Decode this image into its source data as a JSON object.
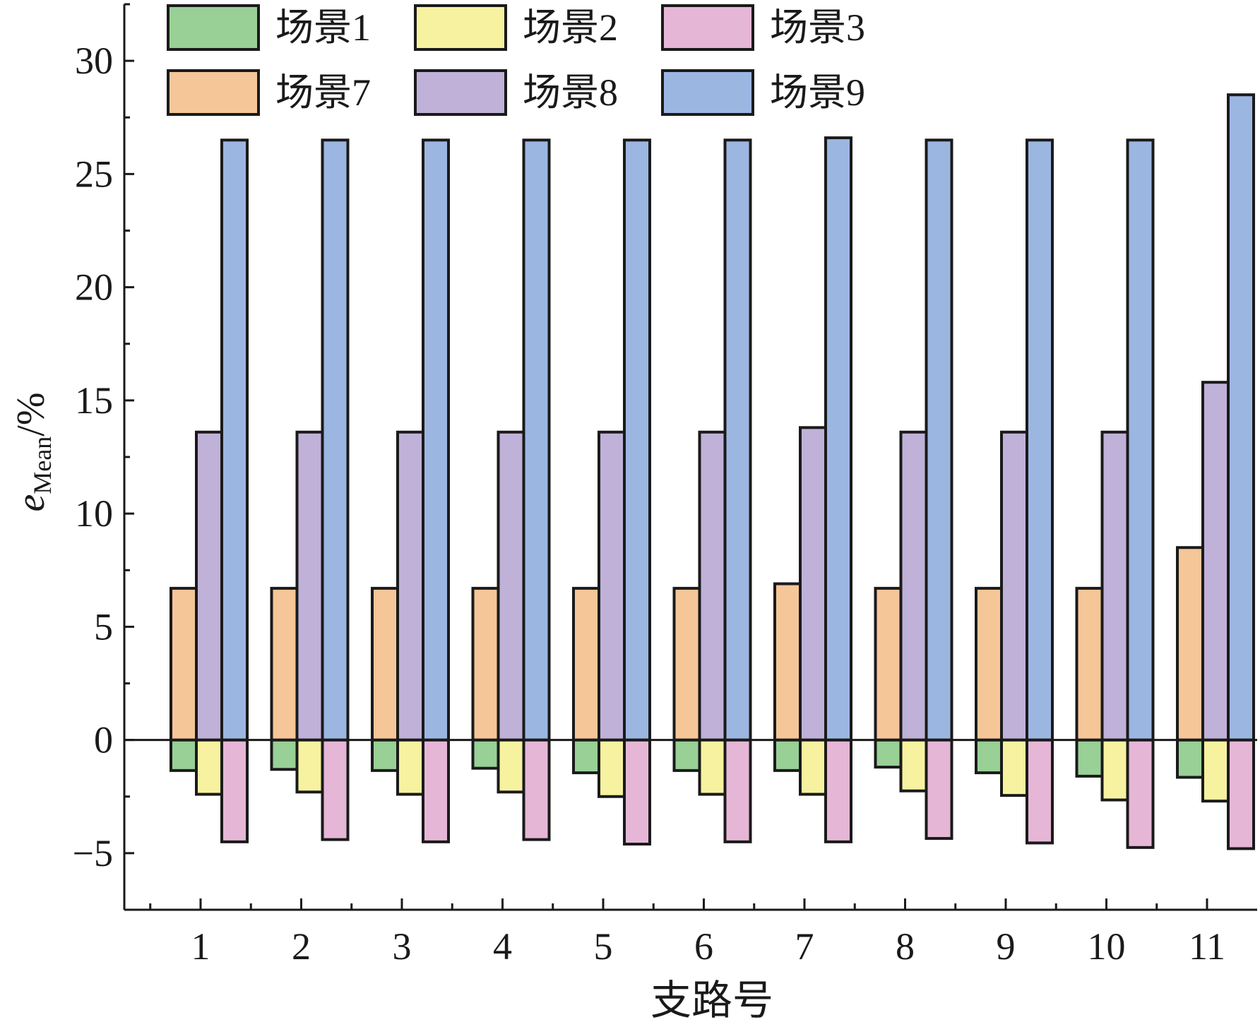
{
  "chart_data": {
    "type": "bar",
    "xlabel": "支路号",
    "ylabel": {
      "main": "e",
      "subscript": "Mean",
      "unit": "/%"
    },
    "ylim": [
      -7.5,
      32.5
    ],
    "yticks": [
      "−5",
      "0",
      "5",
      "10",
      "15",
      "20",
      "25",
      "30"
    ],
    "ytick_values": [
      -5,
      0,
      5,
      10,
      15,
      20,
      25,
      30
    ],
    "categories": [
      "1",
      "2",
      "3",
      "4",
      "5",
      "6",
      "7",
      "8",
      "9",
      "10",
      "11"
    ],
    "grid": false,
    "legend": {
      "position": "top",
      "columns": 3
    },
    "layout": "for each branch, series 1/2/3 are drawn below zero in positions 1-3 and series 7/8/9 above zero in positions 1-3 (overlapping slots)",
    "series": [
      {
        "name": "场景1",
        "color": "#98d096",
        "slot": 0,
        "values": [
          -1.35,
          -1.3,
          -1.35,
          -1.25,
          -1.45,
          -1.35,
          -1.35,
          -1.2,
          -1.45,
          -1.6,
          -1.65
        ]
      },
      {
        "name": "场景2",
        "color": "#f7f2a0",
        "slot": 1,
        "values": [
          -2.4,
          -2.3,
          -2.4,
          -2.3,
          -2.5,
          -2.4,
          -2.4,
          -2.25,
          -2.45,
          -2.65,
          -2.7
        ]
      },
      {
        "name": "场景3",
        "color": "#e6b6d6",
        "slot": 2,
        "values": [
          -4.5,
          -4.4,
          -4.5,
          -4.4,
          -4.6,
          -4.5,
          -4.5,
          -4.35,
          -4.55,
          -4.75,
          -4.8
        ]
      },
      {
        "name": "场景7",
        "color": "#f5c698",
        "slot": 0,
        "values": [
          6.7,
          6.7,
          6.7,
          6.7,
          6.7,
          6.7,
          6.9,
          6.7,
          6.7,
          6.7,
          8.5
        ]
      },
      {
        "name": "场景8",
        "color": "#c0b1d8",
        "slot": 1,
        "values": [
          13.6,
          13.6,
          13.6,
          13.6,
          13.6,
          13.6,
          13.8,
          13.6,
          13.6,
          13.6,
          15.8
        ]
      },
      {
        "name": "场景9",
        "color": "#9cb6e2",
        "slot": 2,
        "values": [
          26.5,
          26.5,
          26.5,
          26.5,
          26.5,
          26.5,
          26.6,
          26.5,
          26.5,
          26.5,
          28.5
        ]
      }
    ]
  }
}
